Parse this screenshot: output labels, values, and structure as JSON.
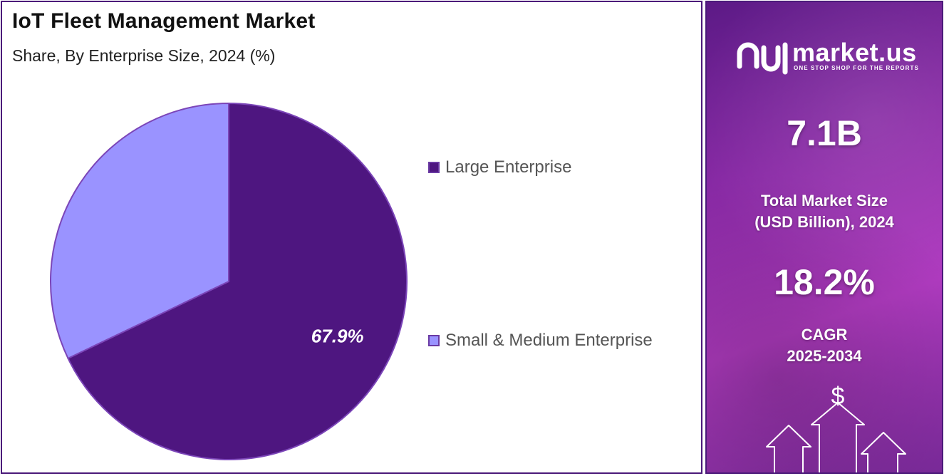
{
  "chart": {
    "title": "IoT Fleet Management Market",
    "subtitle": "Share, By Enterprise Size, 2024 (%)"
  },
  "chart_data": {
    "type": "pie",
    "title": "IoT Fleet Management Market",
    "subtitle": "Share, By Enterprise Size, 2024 (%)",
    "categories": [
      "Large Enterprise",
      "Small & Medium Enterprise"
    ],
    "values": [
      67.9,
      32.1
    ],
    "data_labels": [
      "67.9%",
      ""
    ],
    "colors": [
      "#4e1680",
      "#9a93ff"
    ],
    "legend_position": "right"
  },
  "sidebar": {
    "brand_name": "market.us",
    "brand_tagline": "ONE STOP SHOP FOR THE REPORTS",
    "market_size_value": "7.1B",
    "market_size_label_line1": "Total Market Size",
    "market_size_label_line2": "(USD Billion), 2024",
    "cagr_value": "18.2%",
    "cagr_label_line1": "CAGR",
    "cagr_label_line2": "2025-2034",
    "dollar_symbol": "$"
  }
}
